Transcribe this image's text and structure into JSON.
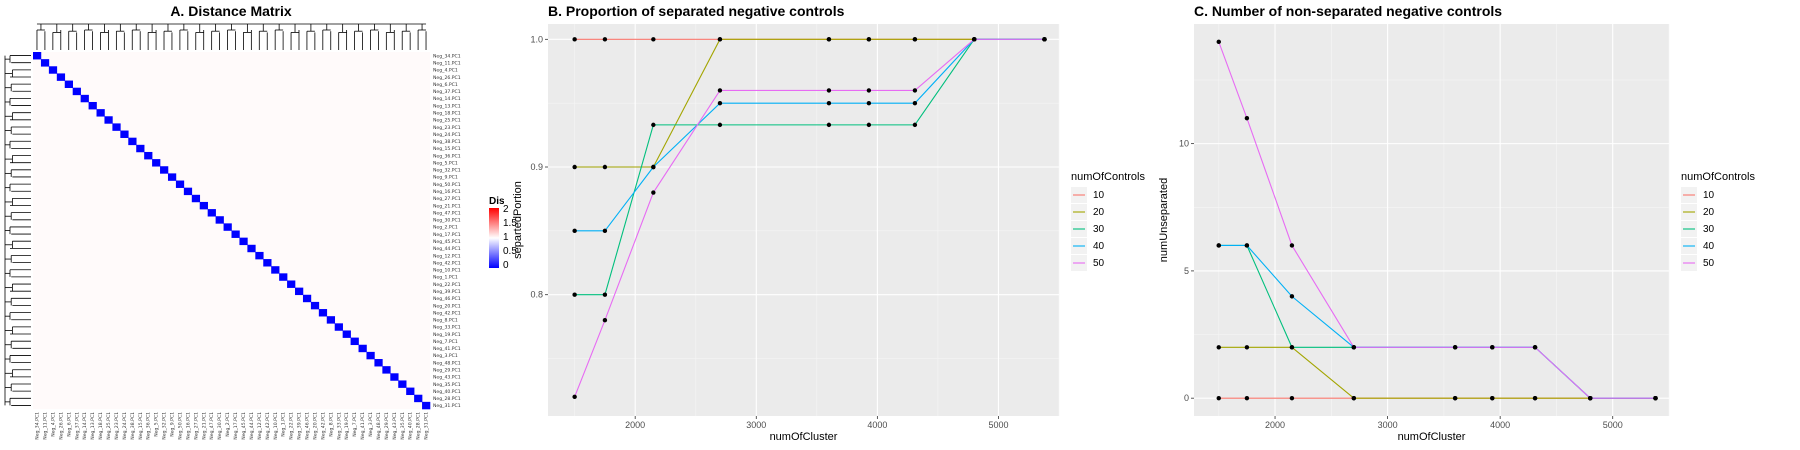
{
  "chart_data": [
    {
      "type": "heatmap",
      "title": "A. Distance Matrix",
      "row_labels": [
        "Neg_34.PC1",
        "Neg_11.PC1",
        "Neg_4.PC1",
        "Neg_26.PC1",
        "Neg_6.PC1",
        "Neg_37.PC1",
        "Neg_14.PC1",
        "Neg_13.PC1",
        "Neg_18.PC1",
        "Neg_25.PC1",
        "Neg_23.PC1",
        "Neg_24.PC1",
        "Neg_38.PC1",
        "Neg_15.PC1",
        "Neg_36.PC1",
        "Neg_5.PC1",
        "Neg_32.PC1",
        "Neg_9.PC1",
        "Neg_50.PC1",
        "Neg_16.PC1",
        "Neg_27.PC1",
        "Neg_21.PC1",
        "Neg_47.PC1",
        "Neg_30.PC1",
        "Neg_2.PC1",
        "Neg_17.PC1",
        "Neg_45.PC1",
        "Neg_44.PC1",
        "Neg_12.PC1",
        "Neg_42.PC1",
        "Neg_10.PC1",
        "Neg_1.PC1",
        "Neg_22.PC1",
        "Neg_39.PC1",
        "Neg_46.PC1",
        "Neg_20.PC1",
        "Neg_42.PC1",
        "Neg_8.PC1",
        "Neg_33.PC1",
        "Neg_19.PC1",
        "Neg_7.PC1",
        "Neg_41.PC1",
        "Neg_3.PC1",
        "Neg_48.PC1",
        "Neg_29.PC1",
        "Neg_43.PC1",
        "Neg_35.PC1",
        "Neg_40.PC1",
        "Neg_28.PC1",
        "Neg_31.PC1"
      ],
      "diagonal_value": 0,
      "off_diagonal_value": 1,
      "legend_title": "Distance",
      "legend_ticks": [
        "2",
        "1.5",
        "1",
        "0.5",
        "0"
      ],
      "colors": {
        "low": "#0000ff",
        "mid": "#ffffff",
        "high": "#ff0000"
      }
    },
    {
      "type": "line",
      "title": "B. Proportion of separated negative controls",
      "xlabel": "numOfCluster",
      "ylabel": "separtedPortion",
      "xlim": [
        1280,
        5500
      ],
      "ylim": [
        0.705,
        1.012
      ],
      "xticks": [
        2000,
        3000,
        4000,
        5000
      ],
      "yticks": [
        0.8,
        0.9,
        1.0
      ],
      "ytick_labels": [
        "0.8",
        "0.9",
        "1.0"
      ],
      "x": [
        1500,
        1750,
        2150,
        2700,
        3600,
        3930,
        4310,
        4800,
        5380
      ],
      "series": [
        {
          "name": "10",
          "color": "#f8766d",
          "values": [
            1.0,
            1.0,
            1.0,
            1.0,
            1.0,
            1.0,
            1.0,
            1.0,
            1.0
          ]
        },
        {
          "name": "20",
          "color": "#a3a500",
          "values": [
            0.9,
            0.9,
            0.9,
            1.0,
            1.0,
            1.0,
            1.0,
            1.0,
            1.0
          ]
        },
        {
          "name": "30",
          "color": "#00bf7d",
          "values": [
            0.8,
            0.8,
            0.933,
            0.933,
            0.933,
            0.933,
            0.933,
            1.0,
            1.0
          ]
        },
        {
          "name": "40",
          "color": "#00b0f6",
          "values": [
            0.85,
            0.85,
            0.9,
            0.95,
            0.95,
            0.95,
            0.95,
            1.0,
            1.0
          ]
        },
        {
          "name": "50",
          "color": "#e76bf3",
          "values": [
            0.72,
            0.78,
            0.88,
            0.96,
            0.96,
            0.96,
            0.96,
            1.0,
            1.0
          ]
        }
      ],
      "legend_title": "numOfControls",
      "legend_placement": "right",
      "grid": true
    },
    {
      "type": "line",
      "title": "C. Number of non-separated negative controls",
      "xlabel": "numOfCluster",
      "ylabel": "numUnseparated",
      "xlim": [
        1280,
        5500
      ],
      "ylim": [
        -0.7,
        14.7
      ],
      "xticks": [
        2000,
        3000,
        4000,
        5000
      ],
      "yticks": [
        0,
        5,
        10
      ],
      "ytick_labels": [
        "0",
        "5",
        "10"
      ],
      "x": [
        1500,
        1750,
        2150,
        2700,
        3600,
        3930,
        4310,
        4800,
        5380
      ],
      "series": [
        {
          "name": "10",
          "color": "#f8766d",
          "values": [
            0,
            0,
            0,
            0,
            0,
            0,
            0,
            0,
            0
          ]
        },
        {
          "name": "20",
          "color": "#a3a500",
          "values": [
            2,
            2,
            2,
            0,
            0,
            0,
            0,
            0,
            0
          ]
        },
        {
          "name": "30",
          "color": "#00bf7d",
          "values": [
            6,
            6,
            2,
            2,
            2,
            2,
            2,
            0,
            0
          ]
        },
        {
          "name": "40",
          "color": "#00b0f6",
          "values": [
            6,
            6,
            4,
            2,
            2,
            2,
            2,
            0,
            0
          ]
        },
        {
          "name": "50",
          "color": "#e76bf3",
          "values": [
            14,
            11,
            6,
            2,
            2,
            2,
            2,
            0,
            0
          ]
        }
      ],
      "legend_title": "numOfControls",
      "legend_placement": "right",
      "grid": true
    }
  ]
}
